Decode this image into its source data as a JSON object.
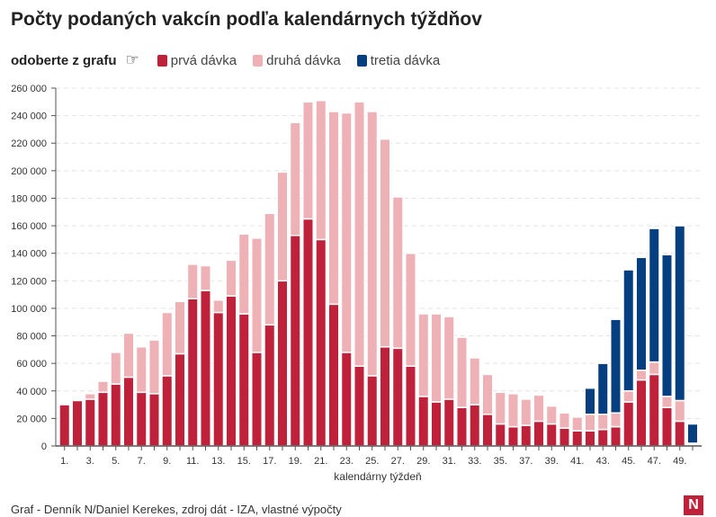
{
  "title": "Počty podaných vakcín podľa kalendárnych týždňov",
  "legend": {
    "hint": "odoberte z grafu",
    "hand_icon": "pointing-hand-icon"
  },
  "source": "Graf - Denník N/Daniel Kerekes, zdroj dát - IZA, vlastné výpočty",
  "logo": "N",
  "chart_data": {
    "type": "bar",
    "stacked": true,
    "title": "Počty podaných vakcín podľa kalendárnych týždňov",
    "xlabel": "kalendárny týždeň",
    "ylabel": "",
    "ylim": [
      0,
      260000
    ],
    "yticks": [
      "0",
      "20 000",
      "40 000",
      "60 000",
      "80 000",
      "100 000",
      "120 000",
      "140 000",
      "160 000",
      "180 000",
      "200 000",
      "220 000",
      "240 000",
      "260 000"
    ],
    "categories": [
      1,
      2,
      3,
      4,
      5,
      6,
      7,
      8,
      9,
      10,
      11,
      12,
      13,
      14,
      15,
      16,
      17,
      18,
      19,
      20,
      21,
      22,
      23,
      24,
      25,
      26,
      27,
      28,
      29,
      30,
      31,
      32,
      33,
      34,
      35,
      36,
      37,
      38,
      39,
      40,
      41,
      42,
      43,
      44,
      45,
      46,
      47,
      48,
      49,
      50
    ],
    "series": [
      {
        "name": "prvá dávka",
        "color": "#c0213a",
        "values": [
          30000,
          33000,
          34000,
          39000,
          45000,
          50000,
          39000,
          38000,
          51000,
          67000,
          107000,
          113000,
          97000,
          109000,
          96000,
          68000,
          88000,
          120000,
          153000,
          165000,
          150000,
          103000,
          68000,
          58000,
          51000,
          72000,
          71000,
          58000,
          36000,
          32000,
          34000,
          28000,
          30000,
          23000,
          16000,
          14000,
          15000,
          18000,
          16000,
          13000,
          11000,
          11000,
          12000,
          14000,
          32000,
          48000,
          52000,
          28000,
          18000,
          1000
        ]
      },
      {
        "name": "druhá dávka",
        "color": "#eeb1b6",
        "values": [
          0,
          0,
          4000,
          8000,
          23000,
          32000,
          33000,
          39000,
          46000,
          38000,
          25000,
          18000,
          9000,
          26000,
          58000,
          83000,
          81000,
          79000,
          82000,
          85000,
          101000,
          140000,
          174000,
          192000,
          192000,
          151000,
          110000,
          82000,
          60000,
          64000,
          60000,
          51000,
          34000,
          29000,
          23000,
          24000,
          19000,
          19000,
          13000,
          11000,
          10000,
          12000,
          11000,
          10000,
          8000,
          7000,
          9000,
          8000,
          15000,
          1000
        ]
      },
      {
        "name": "tretia dávka",
        "color": "#063f80",
        "values": [
          0,
          0,
          0,
          0,
          0,
          0,
          0,
          0,
          0,
          0,
          0,
          0,
          0,
          0,
          0,
          0,
          0,
          0,
          0,
          0,
          0,
          0,
          0,
          0,
          0,
          0,
          0,
          0,
          0,
          0,
          0,
          0,
          0,
          0,
          0,
          0,
          0,
          0,
          0,
          0,
          0,
          19000,
          37000,
          68000,
          88000,
          82000,
          97000,
          103000,
          127000,
          14000
        ]
      }
    ],
    "grid": true,
    "legend_position": "top-left"
  }
}
